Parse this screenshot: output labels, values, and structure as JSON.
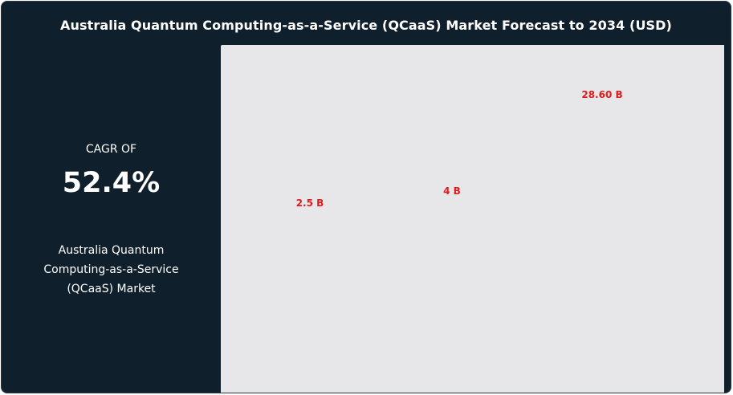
{
  "chart_data": {
    "type": "bar",
    "title": "Australia Quantum Computing-as-a-Service (QCaaS) Market Forecast to 2034 (USD)",
    "values": [
      2.5,
      4,
      28.6
    ],
    "data_labels": [
      "2.5 B",
      "4 B",
      "28.60 B"
    ],
    "colors": {
      "label": "#e01b1b",
      "background": "#e7e6e8",
      "panel": "#0f1f2b"
    }
  },
  "side_panel": {
    "cagr_label": "CAGR OF",
    "cagr_value": "52.4%",
    "market_name": "Australia Quantum Computing-as-a-Service (QCaaS) Market"
  }
}
